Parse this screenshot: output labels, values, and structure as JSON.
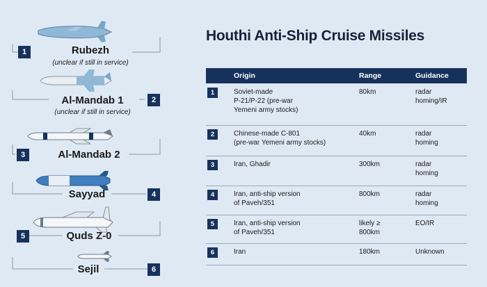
{
  "title": "Houthi Anti-Ship Cruise Missiles",
  "table": {
    "headers": {
      "origin": "Origin",
      "range": "Range",
      "guidance": "Guidance"
    },
    "rows": [
      {
        "num": "1",
        "origin": [
          "Soviet-made",
          "P-21/P-22 (pre-war",
          "Yemeni army stocks)"
        ],
        "range": [
          "80km"
        ],
        "guidance": [
          "radar",
          "homing/IR"
        ]
      },
      {
        "num": "2",
        "origin": [
          "Chinese-made C-801",
          "(pre-war Yemeni army stocks)"
        ],
        "range": [
          "40km"
        ],
        "guidance": [
          "radar",
          "homing"
        ]
      },
      {
        "num": "3",
        "origin": [
          "Iran, Ghadir"
        ],
        "range": [
          "300km"
        ],
        "guidance": [
          "radar",
          "homing"
        ]
      },
      {
        "num": "4",
        "origin": [
          "Iran, anti-ship version",
          "of Paveh/351"
        ],
        "range": [
          "800km"
        ],
        "guidance": [
          "radar",
          "homing"
        ]
      },
      {
        "num": "5",
        "origin": [
          "Iran, anti-ship version",
          "of Paveh/351"
        ],
        "range": [
          "likely ≥",
          "800km"
        ],
        "guidance": [
          "EO/IR"
        ]
      },
      {
        "num": "6",
        "origin": [
          "Iran"
        ],
        "range": [
          "180km"
        ],
        "guidance": [
          "Unknown"
        ]
      }
    ]
  },
  "missiles": [
    {
      "num": "1",
      "name": "Rubezh",
      "note": "(unclear if still in service)"
    },
    {
      "num": "2",
      "name": "Al-Mandab 1",
      "note": "(unclear if still in service)"
    },
    {
      "num": "3",
      "name": "Al-Mandab 2",
      "note": ""
    },
    {
      "num": "4",
      "name": "Sayyad",
      "note": ""
    },
    {
      "num": "5",
      "name": "Quds Z-0",
      "note": ""
    },
    {
      "num": "6",
      "name": "Sejil",
      "note": ""
    }
  ],
  "colors": {
    "background": "#dfe9f4",
    "navy": "#16325c",
    "missile_body": "#8fb8d6",
    "missile_light": "#e9eef3"
  }
}
